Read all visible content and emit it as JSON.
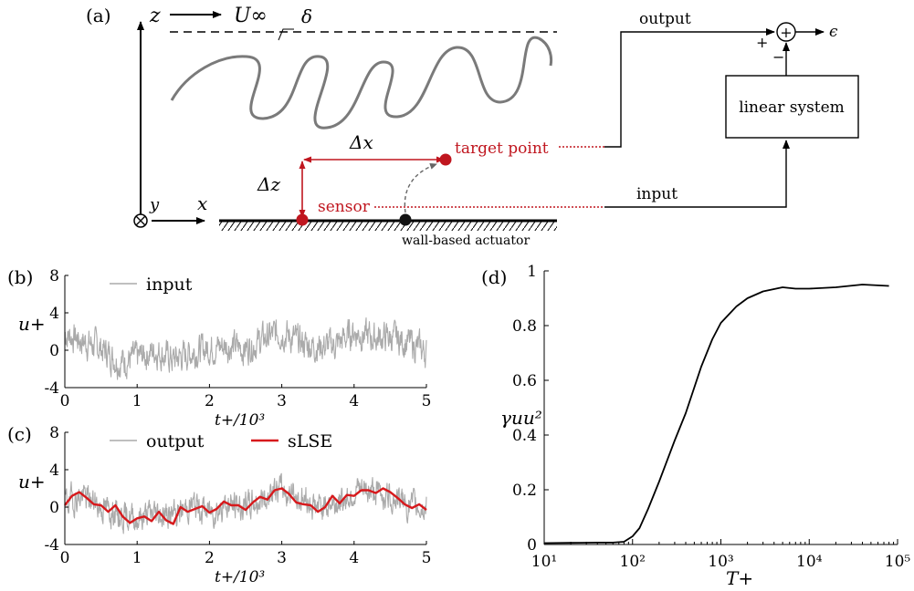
{
  "schematic": {
    "panel_label": "(a)",
    "axis_z": "z",
    "axis_y": "y",
    "axis_x": "x",
    "freestream_label": "U∞",
    "delta_label": "δ",
    "dx_label": "Δx",
    "dz_label": "Δz",
    "target_label": "target point",
    "sensor_label": "sensor",
    "actuator_label": "wall-based actuator",
    "output_label": "output",
    "input_label": "input",
    "plus_sign": "+",
    "minus_sign": "−",
    "sum_symbol": "+",
    "epsilon_label": "ϵ",
    "system_label": "linear system",
    "colors": {
      "red": "#c0161f",
      "black": "#000000",
      "grey": "#777777"
    }
  },
  "chart_data": [
    {
      "panel": "(b)",
      "type": "line",
      "ylabel": "u+",
      "xlabel": "t+/10³",
      "xlim": [
        0,
        5
      ],
      "ylim": [
        -4,
        8
      ],
      "xticks": [
        "0",
        "1",
        "2",
        "3",
        "4",
        "5"
      ],
      "yticks": [
        "-4",
        "0",
        "4",
        "8"
      ],
      "series": [
        {
          "name": "input",
          "color": "#aaaaaa",
          "x": [
            0,
            0.25,
            0.5,
            0.75,
            1,
            1.25,
            1.5,
            1.75,
            2,
            2.25,
            2.5,
            2.75,
            3,
            3.25,
            3.5,
            3.75,
            4,
            4.25,
            4.5,
            4.75,
            5
          ],
          "y": [
            1.8,
            1.0,
            0.2,
            -1.2,
            -0.8,
            0.0,
            -1.0,
            -0.2,
            0.3,
            0.5,
            0.2,
            1.2,
            2.0,
            0.8,
            0.4,
            0.6,
            2.0,
            1.3,
            1.4,
            0.8,
            -0.2
          ]
        }
      ]
    },
    {
      "panel": "(c)",
      "type": "line",
      "ylabel": "u+",
      "xlabel": "t+/10³",
      "xlim": [
        0,
        5
      ],
      "ylim": [
        -4,
        8
      ],
      "xticks": [
        "0",
        "1",
        "2",
        "3",
        "4",
        "5"
      ],
      "yticks": [
        "-4",
        "0",
        "4",
        "8"
      ],
      "series": [
        {
          "name": "output",
          "color": "#aaaaaa",
          "x": [
            0,
            0.25,
            0.5,
            0.75,
            1,
            1.25,
            1.5,
            1.75,
            2,
            2.25,
            2.5,
            2.75,
            3,
            3.25,
            3.5,
            3.75,
            4,
            4.25,
            4.5,
            4.75,
            5
          ],
          "y": [
            0.5,
            1.2,
            0.0,
            -0.8,
            -1.2,
            -0.6,
            -1.0,
            0.3,
            -0.5,
            0.2,
            0.0,
            1.0,
            2.0,
            1.0,
            0.0,
            0.5,
            1.5,
            1.8,
            1.2,
            0.2,
            0.0
          ]
        },
        {
          "name": "sLSE",
          "color": "#d7191c",
          "x": [
            0,
            0.1,
            0.2,
            0.3,
            0.4,
            0.5,
            0.6,
            0.7,
            0.8,
            0.9,
            1.0,
            1.1,
            1.2,
            1.3,
            1.4,
            1.5,
            1.6,
            1.7,
            1.8,
            1.9,
            2.0,
            2.1,
            2.2,
            2.3,
            2.4,
            2.5,
            2.6,
            2.7,
            2.8,
            2.9,
            3.0,
            3.1,
            3.2,
            3.3,
            3.4,
            3.5,
            3.6,
            3.7,
            3.8,
            3.9,
            4.0,
            4.1,
            4.2,
            4.3,
            4.4,
            4.5,
            4.6,
            4.7,
            4.8,
            4.9,
            5.0
          ],
          "y": [
            0.2,
            1.2,
            1.6,
            1.0,
            0.3,
            0.2,
            -0.5,
            0.2,
            -1.0,
            -1.7,
            -1.2,
            -1.0,
            -1.5,
            -0.5,
            -1.4,
            -1.8,
            0.0,
            -0.5,
            -0.2,
            0.1,
            -0.6,
            -0.2,
            0.6,
            0.2,
            0.2,
            -0.3,
            0.5,
            1.1,
            0.8,
            1.8,
            2.0,
            1.4,
            0.5,
            0.3,
            0.2,
            -0.5,
            0.0,
            1.2,
            0.4,
            1.3,
            1.2,
            1.8,
            1.8,
            1.5,
            2.0,
            1.6,
            1.0,
            0.3,
            -0.1,
            0.3,
            -0.3
          ]
        }
      ]
    },
    {
      "panel": "(d)",
      "type": "line",
      "ylabel": "γuu²",
      "xlabel": "T+",
      "xscale": "log",
      "xlim": [
        10,
        100000
      ],
      "ylim": [
        0,
        1
      ],
      "xticks": [
        "10¹",
        "10²",
        "10³",
        "10⁴",
        "10⁵"
      ],
      "yticks": [
        "0",
        "0.2",
        "0.4",
        "0.6",
        "0.8",
        "1"
      ],
      "series": [
        {
          "name": "",
          "color": "#000000",
          "x": [
            10,
            20,
            40,
            60,
            80,
            100,
            120,
            150,
            200,
            300,
            400,
            600,
            800,
            1000,
            1500,
            2000,
            3000,
            5000,
            7000,
            10000,
            20000,
            40000,
            80000
          ],
          "y": [
            0.005,
            0.006,
            0.007,
            0.007,
            0.01,
            0.03,
            0.06,
            0.13,
            0.23,
            0.38,
            0.48,
            0.65,
            0.75,
            0.81,
            0.87,
            0.9,
            0.925,
            0.94,
            0.935,
            0.935,
            0.94,
            0.95,
            0.945
          ]
        }
      ]
    }
  ]
}
